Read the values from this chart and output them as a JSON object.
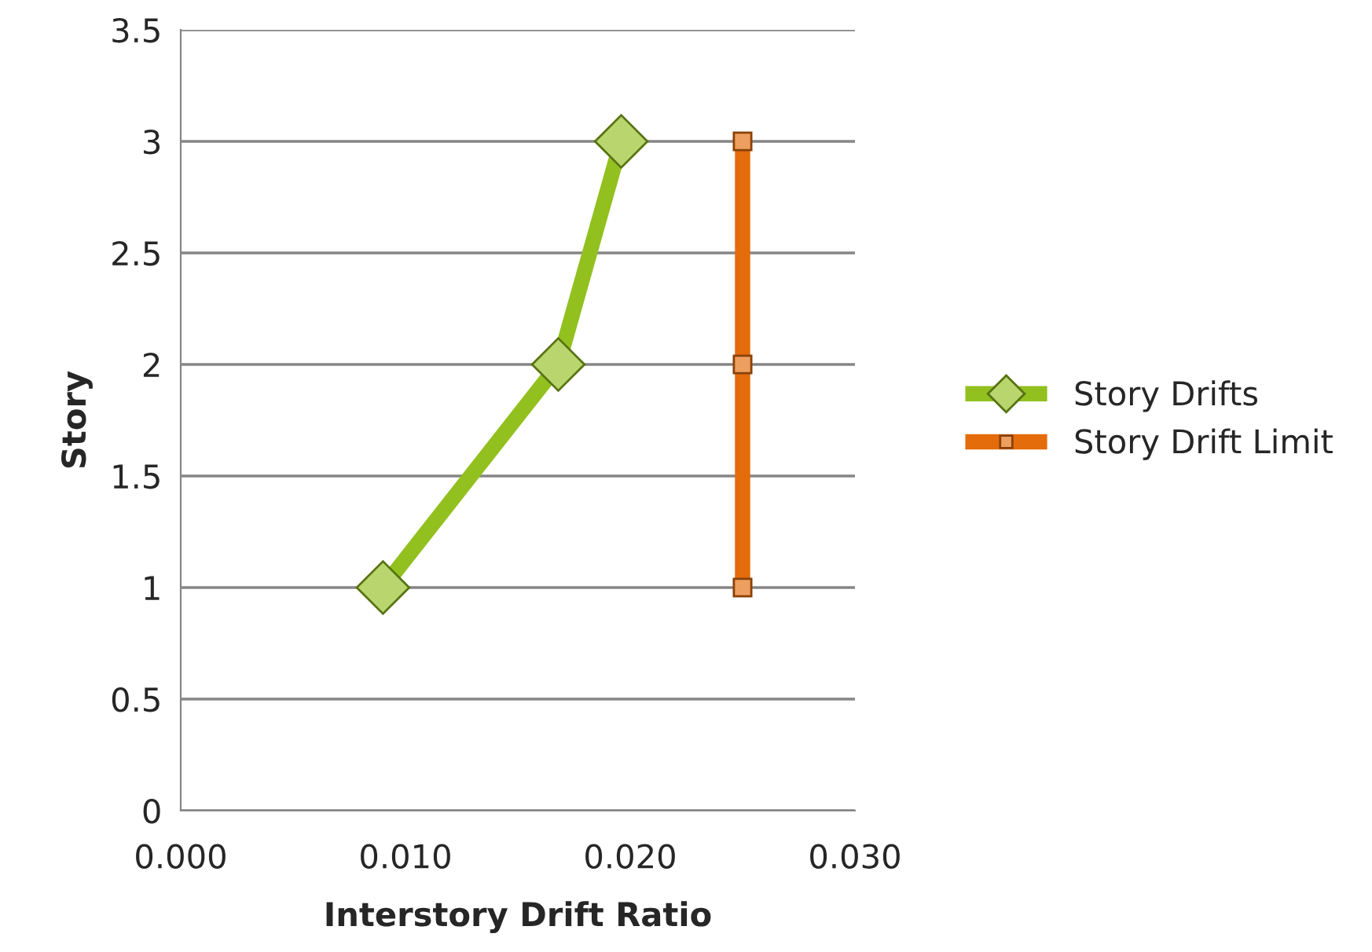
{
  "chart_data": {
    "type": "line",
    "xlabel": "Interstory Drift Ratio",
    "ylabel": "Story",
    "series": [
      {
        "name": "Story Drifts",
        "color": "#92c01f",
        "marker": "diamond",
        "x": [
          0.009,
          0.0168,
          0.0196
        ],
        "values": [
          1,
          2,
          3
        ]
      },
      {
        "name": "Story Drift Limit",
        "color": "#e46c0a",
        "marker": "square",
        "x": [
          0.025,
          0.025,
          0.025
        ],
        "values": [
          1,
          2,
          3
        ]
      }
    ],
    "xlim": [
      0,
      0.03
    ],
    "xticks": [
      {
        "value": 0,
        "label": "0.000"
      },
      {
        "value": 0.01,
        "label": "0.010"
      },
      {
        "value": 0.02,
        "label": "0.020"
      },
      {
        "value": 0.03,
        "label": "0.030"
      }
    ],
    "ylim": [
      0,
      3.5
    ],
    "yticks": [
      0,
      0.5,
      1,
      1.5,
      2,
      2.5,
      3,
      3.5
    ],
    "grid": "y",
    "legend": "right"
  }
}
